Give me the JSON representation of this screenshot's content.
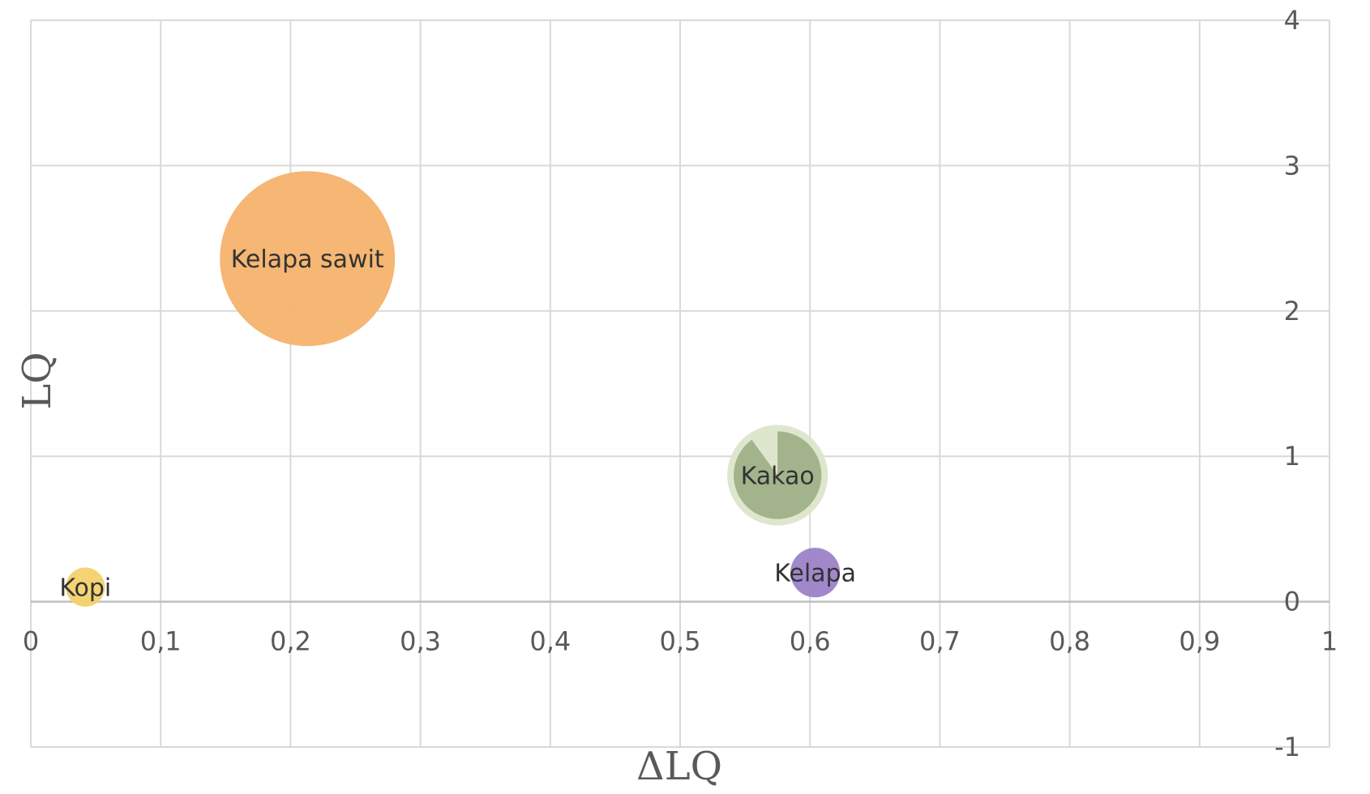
{
  "chart_data": {
    "type": "scatter",
    "variant": "bubble",
    "xlabel": "ΔLQ",
    "ylabel": "LQ",
    "xlim": [
      0,
      1
    ],
    "ylim": [
      -1,
      4
    ],
    "x_ticks": [
      "0",
      "0,1",
      "0,2",
      "0,3",
      "0,4",
      "0,5",
      "0,6",
      "0,7",
      "0,8",
      "0,9",
      "1"
    ],
    "y_ticks": [
      "-1",
      "0",
      "1",
      "2",
      "3",
      "4"
    ],
    "grid": true,
    "legend": "none",
    "points": [
      {
        "label": "Kelapa sawit",
        "x": 0.213,
        "y": 2.36,
        "size": 100,
        "color": "#F4B36B"
      },
      {
        "label": "Kakao",
        "x": 0.575,
        "y": 0.87,
        "size": 33,
        "color": "#DDE5CB",
        "inner_color": "#A3B48C",
        "inner_size": 10,
        "inner_share": 0.9
      },
      {
        "label": "Kelapa",
        "x": 0.604,
        "y": 0.2,
        "size": 8,
        "color": "#9B82C8"
      },
      {
        "label": "Kopi",
        "x": 0.042,
        "y": 0.1,
        "size": 5,
        "color": "#F3D16B"
      }
    ]
  }
}
